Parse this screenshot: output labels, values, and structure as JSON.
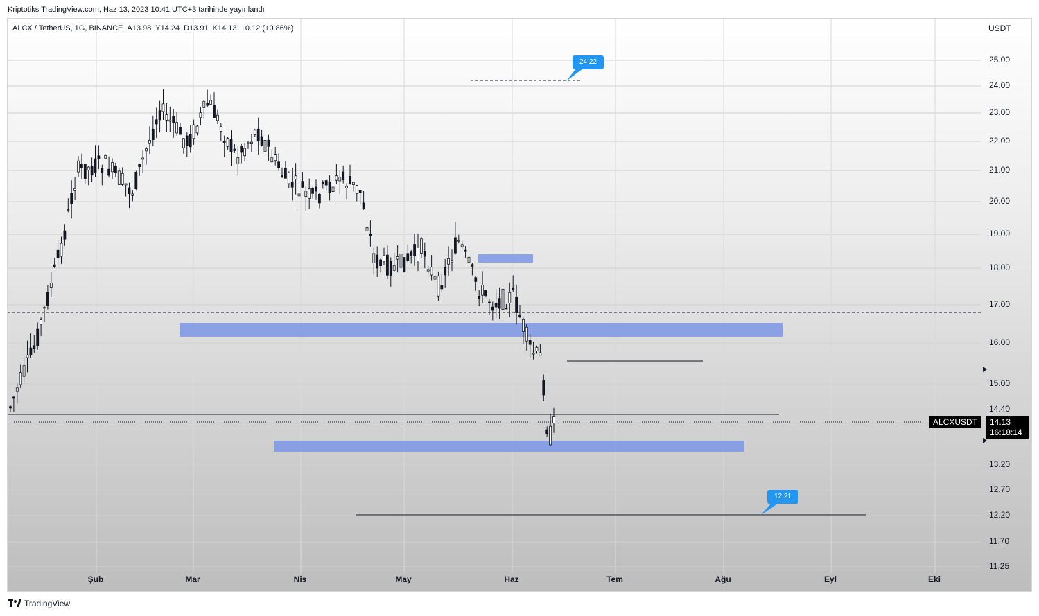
{
  "header": {
    "publish_line": "Kriptotiks TradingView.com, Haz 13, 2023 10:41 UTC+3 tarihinde yayınlandı"
  },
  "legend": {
    "symbol": "ALCX / TetherUS, 1G, BINANCE",
    "open": "A13.98",
    "high": "Y14.24",
    "low": "D13.91",
    "close": "K14.13",
    "change": "+0.12 (+0.86%)"
  },
  "price_axis": {
    "currency": "USDT",
    "ticks": [
      "25.00",
      "24.00",
      "23.00",
      "22.00",
      "21.00",
      "20.00",
      "19.00",
      "18.00",
      "17.00",
      "16.00",
      "15.00",
      "14.40",
      "13.20",
      "12.70",
      "12.20",
      "11.70",
      "11.25"
    ]
  },
  "time_axis": {
    "ticks": [
      "Şub",
      "Mar",
      "Nis",
      "May",
      "Haz",
      "Tem",
      "Ağu",
      "Eyl",
      "Eki"
    ]
  },
  "last_price": {
    "symbol": "ALCXUSDT",
    "price": "14.13",
    "countdown": "16:18:14"
  },
  "annotations": {
    "upper_callout": "24.22",
    "lower_callout": "12.21"
  },
  "colors": {
    "zone": "#7b96e6",
    "callout": "#2196f3",
    "candle": "#131722"
  },
  "footer": {
    "brand": "TradingView"
  }
}
